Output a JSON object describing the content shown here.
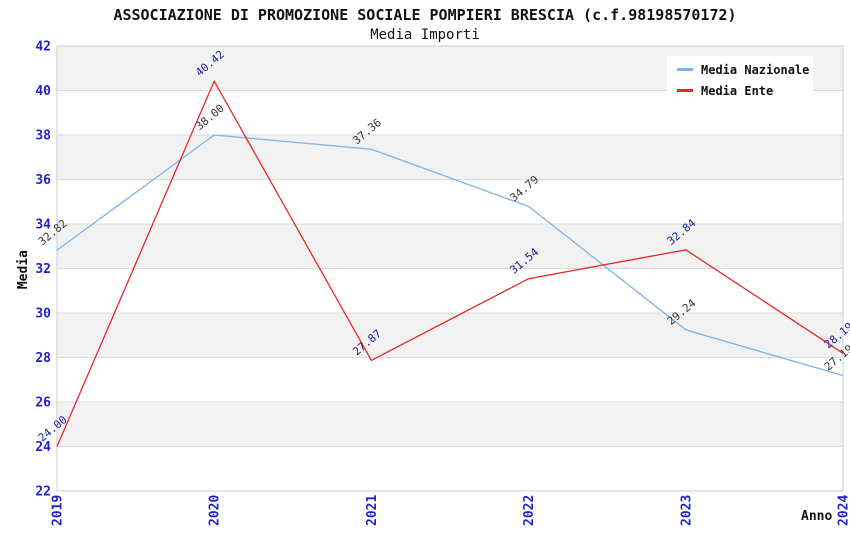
{
  "header": {
    "title": "ASSOCIAZIONE DI PROMOZIONE SOCIALE POMPIERI BRESCIA (c.f.98198570172)",
    "subtitle": "Media Importi"
  },
  "chart_data": {
    "type": "line",
    "title": "ASSOCIAZIONE DI PROMOZIONE SOCIALE POMPIERI BRESCIA (c.f.98198570172)",
    "subtitle": "Media Importi",
    "categories": [
      "2019",
      "2020",
      "2021",
      "2022",
      "2023",
      "2024"
    ],
    "series": [
      {
        "name": "Media Nazionale",
        "values": [
          32.82,
          38.0,
          37.36,
          34.79,
          29.24,
          27.19
        ],
        "color": "#7fb3e6",
        "label_color": "#333333"
      },
      {
        "name": "Media Ente",
        "values": [
          24.0,
          40.42,
          27.87,
          31.54,
          32.84,
          28.19
        ],
        "color": "#e62929",
        "label_color": "#1a1a99"
      }
    ],
    "xlabel": "Anno",
    "ylabel": "Media",
    "ylim": [
      22,
      42
    ],
    "ytick_step": 2,
    "grid": "horizontal-lines-with-alternating-bands",
    "legend_position": "top-right-inside",
    "value_label_decimals": 2,
    "colors": {
      "band": "#f2f2f2",
      "gridline": "#dcdcdc",
      "plot_border": "#cccccc",
      "tick_label": "#2222cc",
      "axis_title": "#111111"
    }
  }
}
